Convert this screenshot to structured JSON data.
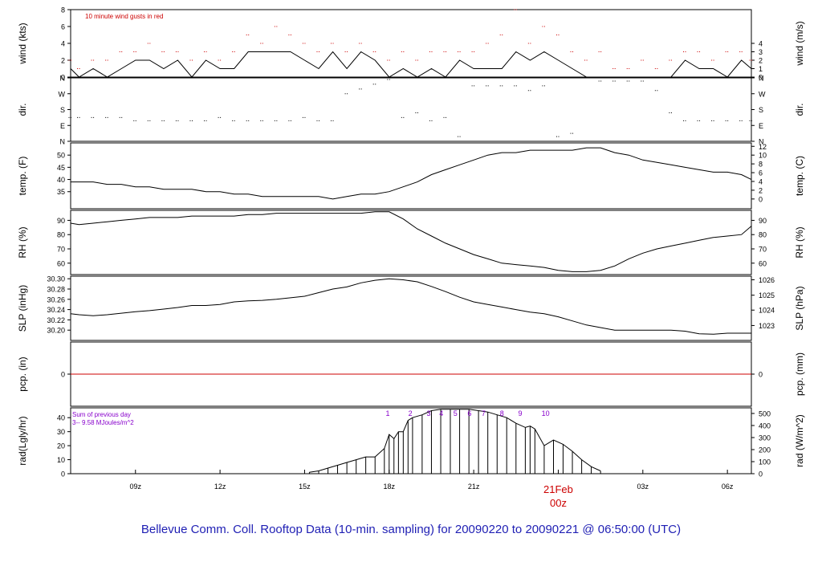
{
  "chart_data": {
    "type": "line",
    "caption": "Bellevue Comm. Coll. Rooftop Data (10-min. sampling) for 20090220  to  20090221 @ 06:50:00  (UTC)",
    "x_ticks": [
      "09z",
      "12z",
      "15z",
      "18z",
      "21z",
      "03z",
      "06z"
    ],
    "date_marker": {
      "label": "21Feb",
      "sub": "00z",
      "color": "#cc0000"
    },
    "x_hour_range": [
      6.7,
      30.85
    ],
    "panels": [
      {
        "id": "wind",
        "ylabel": "wind (kts)",
        "ylabel_right": "wind (m/s)",
        "ylim": [
          0,
          8
        ],
        "ticks_left": [
          "0",
          "2",
          "4",
          "6",
          "8"
        ],
        "ticks_left_values": [
          0,
          2,
          4,
          6,
          8
        ],
        "ticks_right": [
          "0",
          "1",
          "2",
          "3",
          "4"
        ],
        "ticks_right_values": [
          0,
          1,
          2,
          3,
          4
        ],
        "note": "10  minute wind gusts in red",
        "note_color": "#cc0000",
        "series": [
          {
            "name": "wind",
            "style": "line",
            "color": "#000000",
            "x": [
              6.7,
              7.0,
              7.5,
              8.0,
              8.5,
              9.0,
              9.5,
              10.0,
              10.5,
              11.0,
              11.5,
              12.0,
              12.5,
              13.0,
              13.5,
              14.0,
              14.5,
              15.0,
              15.5,
              16.0,
              16.5,
              17.0,
              17.5,
              18.0,
              18.5,
              19.0,
              19.5,
              20.0,
              20.5,
              21.0,
              21.5,
              22.0,
              22.5,
              23.0,
              23.5,
              24.0,
              24.5,
              25.0,
              25.5,
              26.0,
              26.5,
              27.0,
              27.5,
              28.0,
              28.5,
              29.0,
              29.5,
              30.0,
              30.5,
              30.85
            ],
            "y": [
              1,
              0,
              1,
              0,
              1,
              2,
              2,
              1,
              2,
              0,
              2,
              1,
              1,
              3,
              3,
              3,
              3,
              2,
              1,
              3,
              1,
              3,
              2,
              0,
              1,
              0,
              1,
              0,
              2,
              1,
              1,
              1,
              3,
              2,
              3,
              2,
              1,
              0,
              0,
              0,
              0,
              0,
              0,
              0,
              2,
              1,
              1,
              0,
              2,
              1
            ]
          },
          {
            "name": "gusts",
            "style": "dots",
            "color": "#cc0000",
            "x": [
              6.7,
              7.0,
              7.5,
              8.0,
              8.5,
              9.0,
              9.5,
              10.0,
              10.5,
              11.0,
              11.5,
              12.0,
              12.5,
              13.0,
              13.5,
              14.0,
              14.5,
              15.0,
              15.5,
              16.0,
              16.5,
              17.0,
              17.5,
              18.0,
              18.5,
              19.0,
              19.5,
              20.0,
              20.5,
              21.0,
              21.5,
              22.0,
              22.5,
              23.0,
              23.5,
              24.0,
              24.5,
              25.0,
              25.5,
              26.0,
              26.5,
              27.0,
              27.5,
              28.0,
              28.5,
              29.0,
              29.5,
              30.0,
              30.5,
              30.85
            ],
            "y": [
              2,
              1,
              2,
              2,
              3,
              3,
              4,
              3,
              3,
              2,
              3,
              2,
              3,
              5,
              4,
              6,
              5,
              4,
              3,
              4,
              3,
              4,
              3,
              2,
              3,
              2,
              3,
              3,
              3,
              3,
              4,
              5,
              8,
              4,
              6,
              5,
              3,
              2,
              3,
              1,
              1,
              2,
              1,
              2,
              3,
              3,
              2,
              3,
              3,
              2
            ]
          }
        ]
      },
      {
        "id": "dir",
        "ylabel": "dir.",
        "ylabel_right": "dir.",
        "ylim": [
          0,
          4
        ],
        "ticks_left": [
          "N",
          "E",
          "S",
          "W",
          "N"
        ],
        "ticks_left_values": [
          0,
          1,
          2,
          3,
          4
        ],
        "ticks_right": [
          "N",
          "E",
          "S",
          "W",
          "N"
        ],
        "ticks_right_values": [
          0,
          1,
          2,
          3,
          4
        ],
        "series": [
          {
            "name": "direction",
            "style": "dots",
            "color": "#000000",
            "x": [
              6.7,
              7.0,
              7.5,
              8.0,
              8.5,
              9.0,
              9.5,
              10.0,
              10.5,
              11.0,
              11.5,
              12.0,
              12.5,
              13.0,
              13.5,
              14.0,
              14.5,
              15.0,
              15.5,
              16.0,
              16.5,
              17.0,
              17.5,
              18.0,
              18.5,
              19.0,
              19.5,
              20.0,
              20.5,
              21.0,
              21.5,
              22.0,
              22.5,
              23.0,
              23.5,
              24.0,
              24.5,
              25.0,
              25.5,
              26.0,
              26.5,
              27.0,
              27.5,
              28.0,
              28.5,
              29.0,
              29.5,
              30.0,
              30.5,
              30.85
            ],
            "y": [
              1.5,
              1.5,
              1.5,
              1.5,
              1.5,
              1.3,
              1.3,
              1.3,
              1.3,
              1.3,
              1.3,
              1.5,
              1.3,
              1.3,
              1.3,
              1.3,
              1.3,
              1.5,
              1.3,
              1.3,
              3.0,
              3.3,
              3.6,
              3.9,
              1.5,
              1.8,
              1.3,
              1.5,
              0.3,
              3.5,
              3.5,
              3.5,
              3.5,
              3.2,
              3.5,
              0.3,
              0.5,
              4.0,
              3.8,
              3.8,
              3.8,
              3.8,
              3.2,
              1.8,
              1.3,
              1.3,
              1.3,
              1.3,
              1.3,
              1.3
            ]
          }
        ]
      },
      {
        "id": "temp",
        "ylabel": "temp. (F)",
        "ylabel_right": "temp. (C)",
        "ylim": [
          28,
          55
        ],
        "ticks_left": [
          "35",
          "40",
          "45",
          "50"
        ],
        "ticks_left_values": [
          35,
          40,
          45,
          50
        ],
        "ticks_right": [
          "0",
          "2",
          "4",
          "6",
          "8",
          "10",
          "12"
        ],
        "ticks_right_values": [
          32.0,
          35.6,
          39.2,
          42.8,
          46.4,
          50.0,
          53.6
        ],
        "series": [
          {
            "name": "temperature",
            "style": "line",
            "color": "#000000",
            "x": [
              6.7,
              7.0,
              7.5,
              8.0,
              8.5,
              9.0,
              9.5,
              10.0,
              10.5,
              11.0,
              11.5,
              12.0,
              12.5,
              13.0,
              13.5,
              14.0,
              14.5,
              15.0,
              15.5,
              16.0,
              16.5,
              17.0,
              17.5,
              18.0,
              18.5,
              19.0,
              19.5,
              20.0,
              20.5,
              21.0,
              21.5,
              22.0,
              22.5,
              23.0,
              23.5,
              24.0,
              24.5,
              25.0,
              25.5,
              26.0,
              26.5,
              27.0,
              27.5,
              28.0,
              28.5,
              29.0,
              29.5,
              30.0,
              30.5,
              30.85
            ],
            "y": [
              39,
              39,
              39,
              38,
              38,
              37,
              37,
              36,
              36,
              36,
              35,
              35,
              34,
              34,
              33,
              33,
              33,
              33,
              33,
              32,
              33,
              34,
              34,
              35,
              37,
              39,
              42,
              44,
              46,
              48,
              50,
              51,
              51,
              52,
              52,
              52,
              52,
              53,
              53,
              51,
              50,
              48,
              47,
              46,
              45,
              44,
              43,
              43,
              42,
              40
            ]
          }
        ]
      },
      {
        "id": "rh",
        "ylabel": "RH (%)",
        "ylabel_right": "RH (%)",
        "ylim": [
          52,
          97
        ],
        "ticks_left": [
          "60",
          "70",
          "80",
          "90"
        ],
        "ticks_left_values": [
          60,
          70,
          80,
          90
        ],
        "ticks_right": [
          "60",
          "70",
          "80",
          "90"
        ],
        "ticks_right_values": [
          60,
          70,
          80,
          90
        ],
        "series": [
          {
            "name": "relative humidity",
            "style": "line",
            "color": "#000000",
            "x": [
              6.7,
              7.0,
              7.5,
              8.0,
              8.5,
              9.0,
              9.5,
              10.0,
              10.5,
              11.0,
              11.5,
              12.0,
              12.5,
              13.0,
              13.5,
              14.0,
              14.5,
              15.0,
              15.5,
              16.0,
              16.5,
              17.0,
              17.5,
              18.0,
              18.5,
              19.0,
              19.5,
              20.0,
              20.5,
              21.0,
              21.5,
              22.0,
              22.5,
              23.0,
              23.5,
              24.0,
              24.5,
              25.0,
              25.5,
              26.0,
              26.5,
              27.0,
              27.5,
              28.0,
              28.5,
              29.0,
              29.5,
              30.0,
              30.5,
              30.85
            ],
            "y": [
              88,
              87,
              88,
              89,
              90,
              91,
              92,
              92,
              92,
              93,
              93,
              93,
              93,
              94,
              94,
              95,
              95,
              95,
              95,
              95,
              95,
              95,
              96,
              96,
              91,
              84,
              79,
              74,
              70,
              66,
              63,
              60,
              59,
              58,
              57,
              55,
              54,
              54,
              55,
              58,
              63,
              67,
              70,
              72,
              74,
              76,
              78,
              79,
              80,
              86
            ]
          }
        ]
      },
      {
        "id": "slp",
        "ylabel": "SLP (inHg)",
        "ylabel_right": "SLP (hPa)",
        "ylim": [
          30.18,
          30.305
        ],
        "ticks_left": [
          "30.20",
          "30.22",
          "30.24",
          "30.26",
          "30.28",
          "30.30"
        ],
        "ticks_left_values": [
          30.2,
          30.22,
          30.24,
          30.26,
          30.28,
          30.3
        ],
        "ticks_right": [
          "1023",
          "1024",
          "1025",
          "1026"
        ],
        "ticks_right_values": [
          30.209,
          30.239,
          30.268,
          30.298
        ],
        "series": [
          {
            "name": "sea level pressure",
            "style": "line",
            "color": "#000000",
            "x": [
              6.7,
              7.0,
              7.5,
              8.0,
              8.5,
              9.0,
              9.5,
              10.0,
              10.5,
              11.0,
              11.5,
              12.0,
              12.5,
              13.0,
              13.5,
              14.0,
              14.5,
              15.0,
              15.5,
              16.0,
              16.5,
              17.0,
              17.5,
              18.0,
              18.5,
              19.0,
              19.5,
              20.0,
              20.5,
              21.0,
              21.5,
              22.0,
              22.5,
              23.0,
              23.5,
              24.0,
              24.5,
              25.0,
              25.5,
              26.0,
              26.5,
              27.0,
              27.5,
              28.0,
              28.5,
              29.0,
              29.5,
              30.0,
              30.5,
              30.85
            ],
            "y": [
              30.232,
              30.23,
              30.228,
              30.23,
              30.233,
              30.236,
              30.238,
              30.241,
              30.244,
              30.248,
              30.248,
              30.25,
              30.255,
              30.257,
              30.258,
              30.26,
              30.263,
              30.266,
              30.273,
              30.28,
              30.284,
              30.292,
              30.297,
              30.3,
              30.298,
              30.294,
              30.285,
              30.275,
              30.264,
              30.255,
              30.25,
              30.245,
              30.24,
              30.235,
              30.232,
              30.226,
              30.218,
              30.21,
              30.205,
              30.2,
              30.2,
              30.2,
              30.2,
              30.2,
              30.198,
              30.193,
              30.192,
              30.194,
              30.194,
              30.194
            ]
          }
        ]
      },
      {
        "id": "pcp",
        "ylabel": "pcp. (in)",
        "ylabel_right": "pcp. (mm)",
        "ylim": [
          -1,
          1
        ],
        "ticks_left": [
          "0"
        ],
        "ticks_left_values": [
          0
        ],
        "ticks_right": [
          "0"
        ],
        "ticks_right_values": [
          0
        ],
        "series": [
          {
            "name": "precipitation",
            "style": "line",
            "color": "#cc0000",
            "x": [
              6.7,
              30.85
            ],
            "y": [
              0,
              0
            ]
          }
        ]
      },
      {
        "id": "rad",
        "ylabel": "rad(Lgly/hr)",
        "ylabel_right": "rad (W/m^2)",
        "ylim": [
          0,
          47
        ],
        "ticks_left": [
          "0",
          "10",
          "20",
          "30",
          "40"
        ],
        "ticks_left_values": [
          0,
          10,
          20,
          30,
          40
        ],
        "ticks_right": [
          "0",
          "100",
          "200",
          "300",
          "400",
          "500"
        ],
        "ticks_right_values": [
          0,
          8.6,
          17.2,
          25.8,
          34.4,
          43.0
        ],
        "note": "Sum of previous day",
        "note2": "3-- 9.58 MJoules/m^2",
        "note_color": "#8800cc",
        "hour_labels": [
          "1",
          "2",
          "3",
          "4",
          "5",
          "6",
          "7",
          "8",
          "9",
          "10"
        ],
        "hour_label_x": [
          17.95,
          18.75,
          19.4,
          19.85,
          20.35,
          20.85,
          21.35,
          22.0,
          22.65,
          23.55
        ],
        "series": [
          {
            "name": "radiation",
            "style": "bars",
            "color": "#000000",
            "x": [
              15.17,
              15.5,
              15.83,
              16.17,
              16.5,
              16.83,
              17.17,
              17.5,
              17.83,
              18.0,
              18.17,
              18.33,
              18.5,
              18.67,
              18.83,
              19.17,
              19.5,
              19.83,
              20.17,
              20.5,
              20.83,
              21.17,
              21.5,
              21.83,
              22.17,
              22.5,
              22.83,
              23.0,
              23.17,
              23.5,
              23.83,
              24.17,
              24.5,
              24.83,
              25.17,
              25.5
            ],
            "y": [
              1,
              2,
              4,
              6,
              8,
              10,
              12,
              12,
              18,
              28,
              25,
              30,
              30,
              38,
              40,
              42,
              45,
              46,
              46,
              46,
              46,
              45,
              44,
              42,
              40,
              36,
              33,
              34,
              32,
              20,
              24,
              21,
              16,
              10,
              5,
              2
            ]
          }
        ]
      }
    ]
  }
}
